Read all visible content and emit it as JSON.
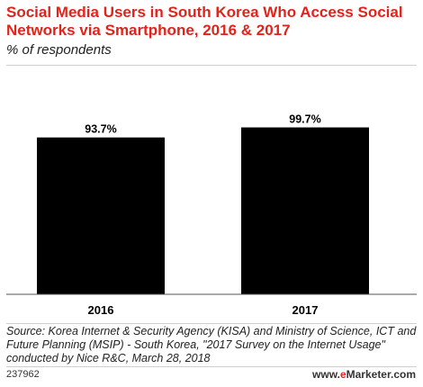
{
  "colors": {
    "title": "#e2231a",
    "bar": "#000000"
  },
  "chart_data": {
    "type": "bar",
    "title": "Social Media Users in South Korea Who Access Social Networks via Smartphone, 2016 & 2017",
    "subtitle": "% of respondents",
    "categories": [
      "2016",
      "2017"
    ],
    "values": [
      93.7,
      99.7
    ],
    "data_labels": [
      "93.7%",
      "99.7%"
    ],
    "ylim": [
      0,
      100
    ],
    "grid": false
  },
  "footer": {
    "source": "Source: Korea Internet & Security Agency (KISA) and Ministry of Science, ICT and Future Planning (MSIP) - South Korea, \"2017 Survey on the Internet Usage\" conducted by Nice R&C, March 28, 2018",
    "chart_id": "237962",
    "brand_prefix": "www.",
    "brand_e": "e",
    "brand_suffix": "Marketer.com"
  }
}
